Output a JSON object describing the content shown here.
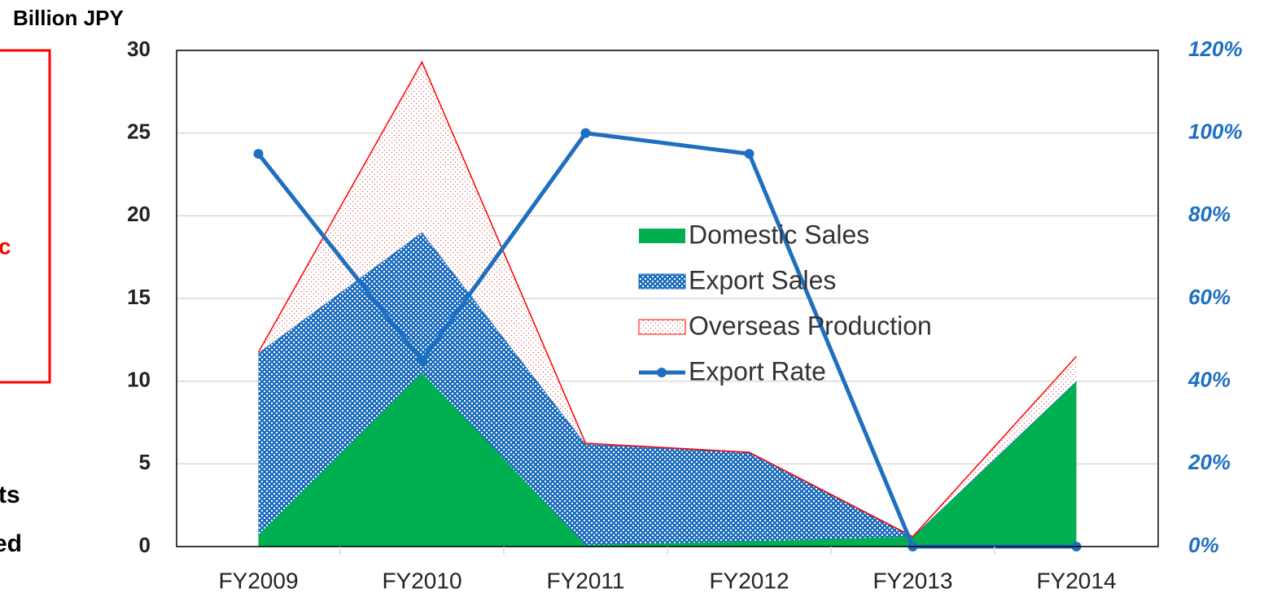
{
  "chart_data": {
    "type": "stacked-area-line",
    "y_axis_label": "Billion JPY",
    "annotations": [
      "c",
      "ts",
      "ed"
    ],
    "categories": [
      "FY2009",
      "FY2010",
      "FY2011",
      "FY2012",
      "FY2013",
      "FY2014"
    ],
    "series": [
      {
        "name": "Domestic Sales",
        "color": "#00b050",
        "values": [
          0.7,
          10.5,
          0.1,
          0.3,
          0.6,
          10
        ]
      },
      {
        "name": "Export Sales",
        "color": "#1f6fc0",
        "values": [
          11,
          8.5,
          6.1,
          5.4,
          0,
          0
        ]
      },
      {
        "name": "Overseas Production",
        "color": "#ff0000",
        "values": [
          0.05,
          10.3,
          0.05,
          0,
          0,
          1.5
        ]
      },
      {
        "name": "Export Rate",
        "color": "#1f6fc0",
        "axis": "y2",
        "values": [
          95,
          45,
          100,
          95,
          0,
          0
        ]
      }
    ],
    "ylim": [
      0,
      30
    ],
    "yticks": [
      0,
      5,
      10,
      15,
      20,
      25,
      30
    ],
    "y2lim": [
      0,
      120
    ],
    "y2ticks": [
      {
        "value": 0,
        "label": "0%"
      },
      {
        "value": 20,
        "label": "20%"
      },
      {
        "value": 40,
        "label": "40%"
      },
      {
        "value": 60,
        "label": "60%"
      },
      {
        "value": 80,
        "label": "80%"
      },
      {
        "value": 100,
        "label": "100%"
      },
      {
        "value": 120,
        "label": "120%"
      }
    ],
    "grid": true
  }
}
